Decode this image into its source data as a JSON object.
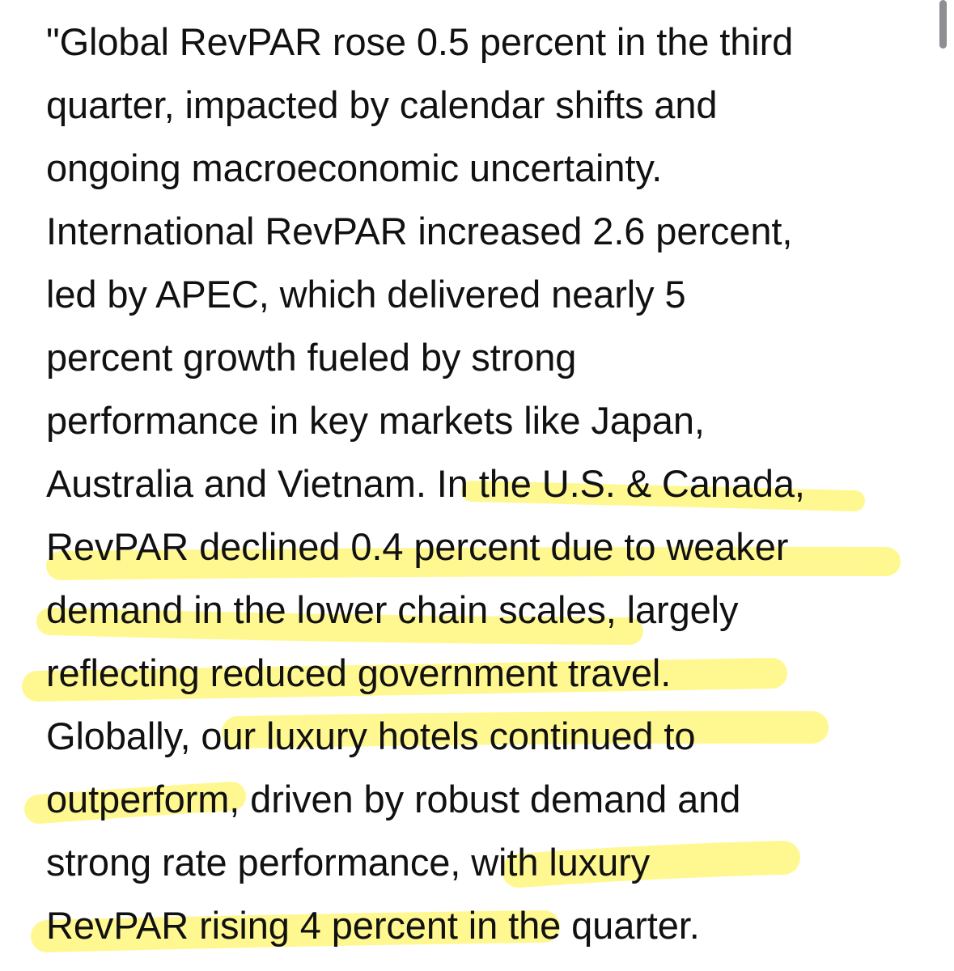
{
  "quote": {
    "lines": [
      "\"Global RevPAR rose 0.5 percent in the third",
      "quarter, impacted by calendar shifts and",
      "ongoing macroeconomic uncertainty.",
      "International RevPAR increased 2.6 percent,",
      "led by APEC, which delivered nearly 5",
      "percent growth fueled by strong",
      "performance in key markets like Japan,",
      "Australia and Vietnam. In the U.S. & Canada,",
      "RevPAR declined 0.4 percent due to weaker",
      "demand in the lower chain scales, largely",
      "reflecting reduced government travel.",
      "Globally, our luxury hotels continued to",
      "outperform, driven by robust demand and",
      "strong rate performance, with luxury",
      "RevPAR rising 4 percent in the quarter."
    ]
  },
  "highlight_color": "#fff34d",
  "text_color": "#111111",
  "scrollbar_color": "#8e8e93"
}
